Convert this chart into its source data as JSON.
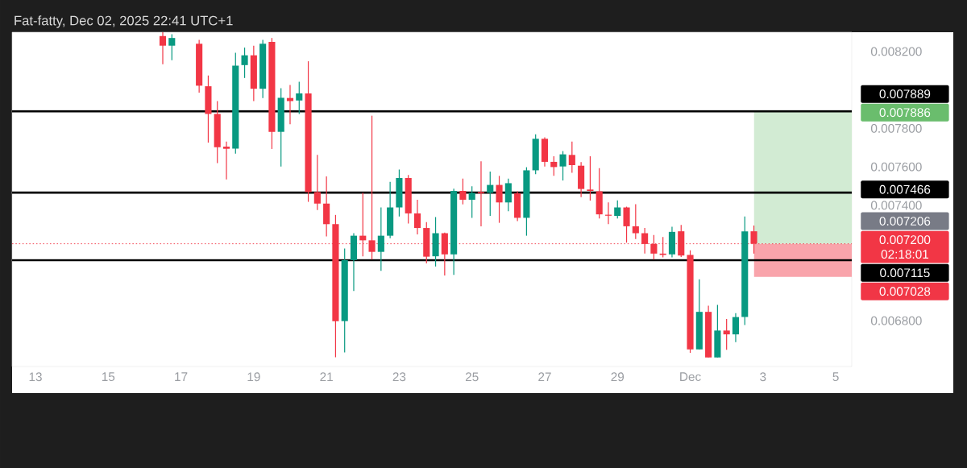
{
  "chart_data": {
    "type": "candlestick",
    "title": "Fat-fatty, Dec 02, 2025 22:41 UTC+1",
    "x": [
      "2025-11-16T12:00",
      "2025-11-16T18:00",
      "2025-11-17T12:00",
      "2025-11-17T18:00",
      "2025-11-18T00:00",
      "2025-11-18T06:00",
      "2025-11-18T12:00",
      "2025-11-18T18:00",
      "2025-11-19T00:00",
      "2025-11-19T06:00",
      "2025-11-19T12:00",
      "2025-11-19T18:00",
      "2025-11-20T00:00",
      "2025-11-20T06:00",
      "2025-11-20T12:00",
      "2025-11-20T18:00",
      "2025-11-21T00:00",
      "2025-11-21T06:00",
      "2025-11-21T12:00",
      "2025-11-21T18:00",
      "2025-11-22T00:00",
      "2025-11-22T06:00",
      "2025-11-22T12:00",
      "2025-11-22T18:00",
      "2025-11-23T00:00",
      "2025-11-23T06:00",
      "2025-11-23T12:00",
      "2025-11-23T18:00",
      "2025-11-24T00:00",
      "2025-11-24T06:00",
      "2025-11-24T12:00",
      "2025-11-24T18:00",
      "2025-11-25T00:00",
      "2025-11-25T06:00",
      "2025-11-25T12:00",
      "2025-11-25T18:00",
      "2025-11-26T00:00",
      "2025-11-26T06:00",
      "2025-11-26T12:00",
      "2025-11-26T18:00",
      "2025-11-27T00:00",
      "2025-11-27T06:00",
      "2025-11-27T12:00",
      "2025-11-27T18:00",
      "2025-11-28T00:00",
      "2025-11-28T06:00",
      "2025-11-28T12:00",
      "2025-11-28T18:00",
      "2025-11-29T00:00",
      "2025-11-29T06:00",
      "2025-11-29T12:00",
      "2025-11-29T18:00",
      "2025-11-30T00:00",
      "2025-11-30T06:00",
      "2025-11-30T12:00",
      "2025-11-30T18:00",
      "2025-12-01T00:00",
      "2025-12-01T06:00",
      "2025-12-01T12:00",
      "2025-12-01T18:00",
      "2025-12-02T00:00",
      "2025-12-02T06:00",
      "2025-12-02T12:00",
      "2025-12-02T18:00"
    ],
    "ohlc": [
      [
        0.00828,
        0.0083,
        0.008134,
        0.00823
      ],
      [
        0.00823,
        0.00829,
        0.008154,
        0.00827
      ],
      [
        0.00824,
        0.00826,
        0.007986,
        0.008022
      ],
      [
        0.008019,
        0.008075,
        0.007726,
        0.007875
      ],
      [
        0.007875,
        0.007942,
        0.007619,
        0.007702
      ],
      [
        0.007705,
        0.007731,
        0.007535,
        0.007694
      ],
      [
        0.007695,
        0.008193,
        0.007669,
        0.008126
      ],
      [
        0.008129,
        0.00822,
        0.008062,
        0.00818
      ],
      [
        0.00818,
        0.00823,
        0.007942,
        0.008006
      ],
      [
        0.008006,
        0.00826,
        0.007958,
        0.00824
      ],
      [
        0.00825,
        0.00827,
        0.007693,
        0.007782
      ],
      [
        0.007782,
        0.008009,
        0.007602,
        0.007959
      ],
      [
        0.007958,
        0.008026,
        0.007822,
        0.007942
      ],
      [
        0.007945,
        0.008042,
        0.007875,
        0.007982
      ],
      [
        0.007982,
        0.008149,
        0.007418,
        0.007469
      ],
      [
        0.007469,
        0.007662,
        0.007375,
        0.007409
      ],
      [
        0.007409,
        0.00755,
        0.007238,
        0.007302
      ],
      [
        0.007302,
        0.00735,
        0.00661,
        0.006798
      ],
      [
        0.006798,
        0.007175,
        0.006635,
        0.007115
      ],
      [
        0.007115,
        0.007255,
        0.006955,
        0.007242
      ],
      [
        0.007242,
        0.007465,
        0.007135,
        0.007218
      ],
      [
        0.007218,
        0.007866,
        0.007118,
        0.007158
      ],
      [
        0.007158,
        0.007389,
        0.007059,
        0.007242
      ],
      [
        0.007242,
        0.007522,
        0.007229,
        0.007389
      ],
      [
        0.007389,
        0.007586,
        0.007342,
        0.007542
      ],
      [
        0.007542,
        0.007558,
        0.007305,
        0.007358
      ],
      [
        0.007358,
        0.007429,
        0.007249,
        0.007282
      ],
      [
        0.007282,
        0.007313,
        0.007098,
        0.007133
      ],
      [
        0.007135,
        0.007339,
        0.007082,
        0.007255
      ],
      [
        0.007255,
        0.007258,
        0.007035,
        0.007145
      ],
      [
        0.007145,
        0.007486,
        0.007038,
        0.007475
      ],
      [
        0.007475,
        0.007539,
        0.007405,
        0.007429
      ],
      [
        0.007429,
        0.007499,
        0.007335,
        0.007465
      ],
      [
        0.007469,
        0.007629,
        0.007291,
        0.007462
      ],
      [
        0.007465,
        0.007575,
        0.007345,
        0.007506
      ],
      [
        0.007506,
        0.007553,
        0.007309,
        0.007415
      ],
      [
        0.007415,
        0.007539,
        0.007369,
        0.007515
      ],
      [
        0.007462,
        0.007473,
        0.007318,
        0.007335
      ],
      [
        0.007335,
        0.007598,
        0.007242,
        0.007582
      ],
      [
        0.007582,
        0.007769,
        0.007562,
        0.007746
      ],
      [
        0.007746,
        0.007753,
        0.007602,
        0.007626
      ],
      [
        0.007626,
        0.007655,
        0.007553,
        0.007599
      ],
      [
        0.007602,
        0.007682,
        0.007529,
        0.007665
      ],
      [
        0.007662,
        0.007731,
        0.007569,
        0.007609
      ],
      [
        0.007606,
        0.007625,
        0.007442,
        0.007485
      ],
      [
        0.007482,
        0.007655,
        0.007425,
        0.007475
      ],
      [
        0.007473,
        0.007593,
        0.007331,
        0.007353
      ],
      [
        0.007351,
        0.007415,
        0.007302,
        0.007346
      ],
      [
        0.007345,
        0.007426,
        0.007331,
        0.007389
      ],
      [
        0.007389,
        0.007393,
        0.007206,
        0.007291
      ],
      [
        0.007291,
        0.007406,
        0.007225,
        0.007255
      ],
      [
        0.007255,
        0.007282,
        0.007149,
        0.007199
      ],
      [
        0.007199,
        0.007246,
        0.007118,
        0.007149
      ],
      [
        0.007149,
        0.007235,
        0.007129,
        0.007142
      ],
      [
        0.007145,
        0.007289,
        0.007129,
        0.007262
      ],
      [
        0.007265,
        0.007298,
        0.007131,
        0.007139
      ],
      [
        0.007142,
        0.007166,
        0.006633,
        0.006651
      ],
      [
        0.006651,
        0.007015,
        0.006651,
        0.006846
      ],
      [
        0.006846,
        0.006878,
        0.006609,
        0.006609
      ],
      [
        0.006609,
        0.006882,
        0.006609,
        0.006749
      ],
      [
        0.006749,
        0.006809,
        0.006649,
        0.006729
      ],
      [
        0.006729,
        0.006839,
        0.006689,
        0.006819
      ],
      [
        0.006819,
        0.007342,
        0.006778,
        0.007265
      ],
      [
        0.007265,
        0.007295,
        0.007149,
        0.0072
      ]
    ],
    "colors": [
      "#f23645",
      "#089981",
      "#f23645",
      "#f23645",
      "#f23645",
      "#f23645",
      "#089981",
      "#089981",
      "#f23645",
      "#089981",
      "#f23645",
      "#089981",
      "#f23645",
      "#089981",
      "#f23645",
      "#f23645",
      "#f23645",
      "#f23645",
      "#089981",
      "#089981",
      "#f23645",
      "#f23645",
      "#089981",
      "#089981",
      "#089981",
      "#f23645",
      "#f23645",
      "#f23645",
      "#089981",
      "#f23645",
      "#089981",
      "#f23645",
      "#089981",
      "#f23645",
      "#089981",
      "#f23645",
      "#089981",
      "#f23645",
      "#089981",
      "#089981",
      "#f23645",
      "#f23645",
      "#089981",
      "#f23645",
      "#f23645",
      "#f23645",
      "#f23645",
      "#f23645",
      "#089981",
      "#f23645",
      "#f23645",
      "#f23645",
      "#f23645",
      "#f23645",
      "#089981",
      "#f23645",
      "#f23645",
      "#089981",
      "#f23645",
      "#089981",
      "#f23645",
      "#089981",
      "#089981",
      "#f23645"
    ],
    "xlim": [
      "2025-11-12T08:35",
      "2025-12-05T10:35"
    ],
    "xticks": [
      {
        "value": "2025-11-13",
        "label": "13"
      },
      {
        "value": "2025-11-15",
        "label": "15"
      },
      {
        "value": "2025-11-17",
        "label": "17"
      },
      {
        "value": "2025-11-19",
        "label": "19"
      },
      {
        "value": "2025-11-21",
        "label": "21"
      },
      {
        "value": "2025-11-23",
        "label": "23"
      },
      {
        "value": "2025-11-25",
        "label": "25"
      },
      {
        "value": "2025-11-27",
        "label": "27"
      },
      {
        "value": "2025-11-29",
        "label": "29"
      },
      {
        "value": "2025-12-01",
        "label": "Dec"
      },
      {
        "value": "2025-12-03",
        "label": "3"
      },
      {
        "value": "2025-12-05",
        "label": "5"
      }
    ],
    "ylim": [
      0.006562,
      0.0083
    ],
    "yticks": [
      {
        "value": 0.0068,
        "label": "0.006800"
      },
      {
        "value": 0.0074,
        "label": "0.007400"
      },
      {
        "value": 0.0076,
        "label": "0.007600"
      },
      {
        "value": 0.0078,
        "label": "0.007800"
      },
      {
        "value": 0.0082,
        "label": "0.008200"
      }
    ],
    "ref_lines": [
      {
        "axis": "y",
        "value": 0.007889,
        "label": "0.007889",
        "color": "#000000",
        "line_style": "solid"
      },
      {
        "axis": "y",
        "value": 0.007466,
        "label": "0.007466",
        "color": "#000000",
        "line_style": "solid"
      },
      {
        "axis": "y",
        "value": 0.0072,
        "label": "0.007200",
        "color": "#f23645",
        "line_style": "dotted"
      },
      {
        "axis": "y",
        "value": 0.007115,
        "label": "0.007115",
        "color": "#000000",
        "line_style": "solid"
      }
    ],
    "bands": [
      {
        "axis": "y",
        "from": 0.0072,
        "to": 0.007886,
        "label": "0.007886",
        "color": "#d2ebd3"
      },
      {
        "axis": "y",
        "from": 0.007028,
        "to": 0.0072,
        "label": "0.007028",
        "color": "#f9a4ab"
      }
    ],
    "annotations": [
      "0.007206",
      "02:18:01"
    ]
  }
}
